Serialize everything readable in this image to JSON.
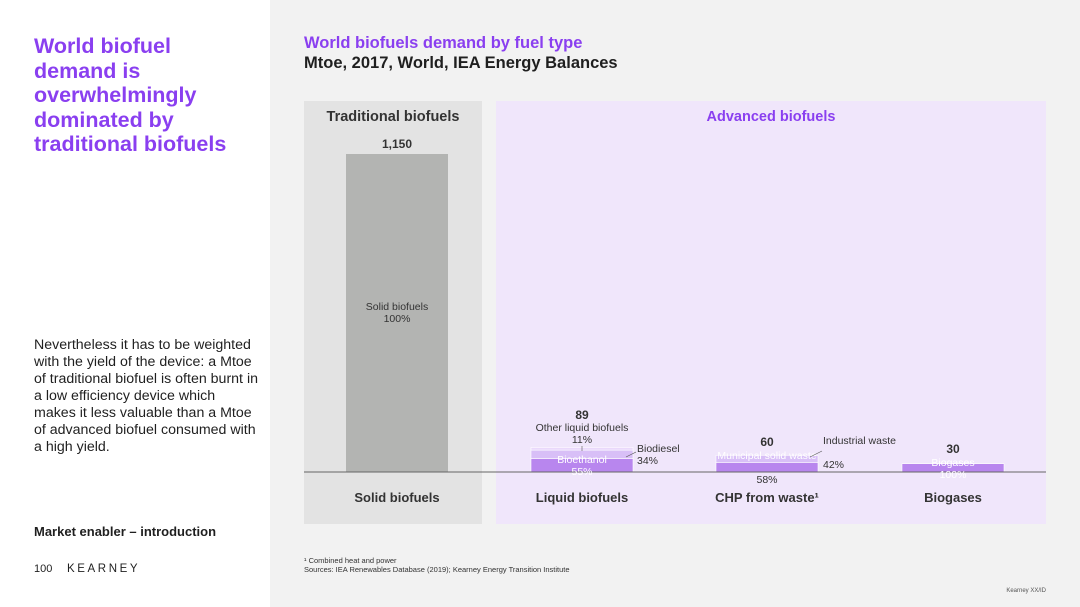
{
  "slide": {
    "headline": "World biofuel demand is overwhelmingly dominated by traditional biofuels",
    "body": "Nevertheless it has to be weighted with the yield of the device: a Mtoe of traditional biofuel is often burnt in a low efficiency device which makes it less valuable than a Mtoe of advanced biofuel consumed with a high yield.",
    "section_label": "Market enabler – introduction",
    "page_number": "100",
    "brand": "KEARNEY",
    "footnote_1": "¹ Combined heat and power",
    "footnote_2": "Sources: IEA Renewables Database (2019); Kearney Energy Transition Institute",
    "copyright": "Kearney XX/ID"
  },
  "colors": {
    "purple": "#8a3ff0",
    "grey_bar": "#b3b4b2",
    "traditional_bg": "#e3e3e3",
    "advanced_bg": "#f0e6fb",
    "seg_main": "#b886ee",
    "seg_light": "#d8bff7",
    "seg_pale": "#ead9fb"
  },
  "chart_data": {
    "type": "bar",
    "title": "World biofuels demand by fuel type",
    "subtitle": "Mtoe, 2017, World, IEA Energy Balances",
    "groups": [
      {
        "label": "Traditional biofuels",
        "categories": [
          "Solid biofuels"
        ]
      },
      {
        "label": "Advanced biofuels",
        "categories": [
          "Liquid biofuels",
          "CHP from waste¹",
          "Biogases"
        ]
      }
    ],
    "bars": [
      {
        "category": "Solid biofuels",
        "total": 1150,
        "total_label": "1,150",
        "segments": [
          {
            "name": "Solid biofuels",
            "share_label": "100%",
            "share": 100
          }
        ]
      },
      {
        "category": "Liquid biofuels",
        "total": 89,
        "total_label": "89",
        "segments": [
          {
            "name": "Bioethanol",
            "share_label": "55%",
            "share": 55
          },
          {
            "name": "Biodiesel",
            "share_label": "34%",
            "share": 34
          },
          {
            "name": "Other liquid biofuels",
            "share_label": "11%",
            "share": 11
          }
        ]
      },
      {
        "category": "CHP from waste¹",
        "total": 60,
        "total_label": "60",
        "segments": [
          {
            "name": "Municipal solid waste",
            "share_label": "58%",
            "share": 58
          },
          {
            "name": "Industrial waste",
            "share_label": "42%",
            "share": 42
          }
        ]
      },
      {
        "category": "Biogases",
        "total": 30,
        "total_label": "30",
        "segments": [
          {
            "name": "Biogases",
            "share_label": "100%",
            "share": 100
          }
        ]
      }
    ]
  }
}
